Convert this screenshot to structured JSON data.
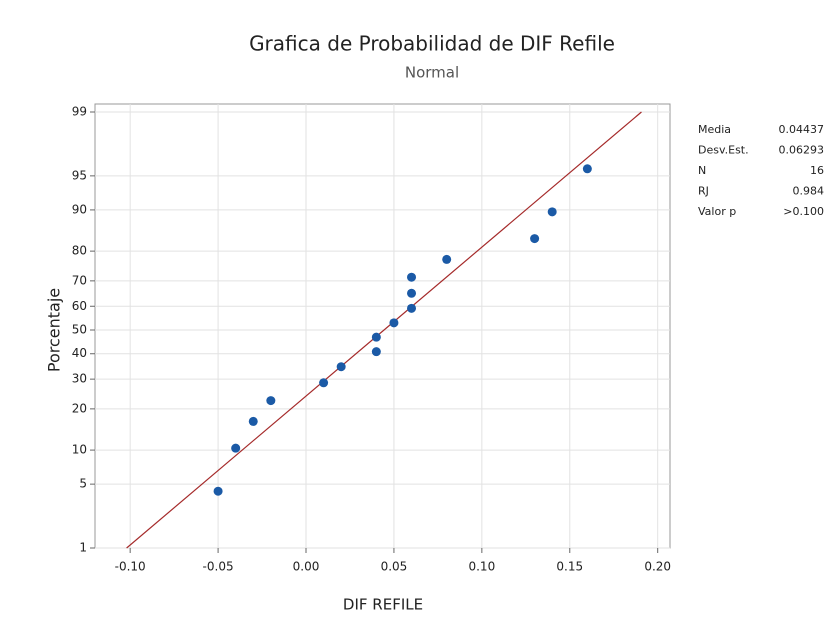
{
  "chart_data": {
    "type": "probability",
    "title": "Grafica de Probabilidad de DIF Refile",
    "subtitle": "Normal",
    "x_label": "DIF REFILE",
    "y_label": "Porcentaje",
    "yscale": "normal",
    "x": [
      -0.05,
      -0.04,
      -0.03,
      -0.02,
      0.01,
      0.02,
      0.04,
      0.04,
      0.05,
      0.06,
      0.06,
      0.06,
      0.08,
      0.13,
      0.14,
      0.16
    ],
    "values": [
      4.27,
      10.37,
      16.46,
      22.56,
      28.66,
      34.76,
      40.85,
      46.95,
      53.05,
      59.15,
      65.24,
      71.34,
      77.44,
      83.54,
      89.63,
      95.73
    ],
    "color": "#1b5aa6",
    "line_color": "#a52a2a",
    "xlim": [
      -0.12,
      0.207
    ],
    "ylim": [
      1,
      99
    ],
    "xticks": [
      {
        "value": -0.1,
        "label": "-0.10"
      },
      {
        "value": -0.05,
        "label": "-0.05"
      },
      {
        "value": 0,
        "label": "0.00"
      },
      {
        "value": 0.05,
        "label": "0.05"
      },
      {
        "value": 0.1,
        "label": "0.10"
      },
      {
        "value": 0.15,
        "label": "0.15"
      },
      {
        "value": 0.2,
        "label": "0.20"
      }
    ],
    "yticks": [
      1,
      5,
      10,
      20,
      30,
      40,
      50,
      60,
      70,
      80,
      90,
      95,
      99
    ],
    "grid": true,
    "stats": [
      {
        "label": "Media",
        "value": 0.04437
      },
      {
        "label": "Desv.Est.",
        "value": 0.06293
      },
      {
        "label": "N",
        "value": 16
      },
      {
        "label": "RJ",
        "value": 0.984
      },
      {
        "label": "Valor p",
        "value": ">0.100"
      }
    ]
  }
}
